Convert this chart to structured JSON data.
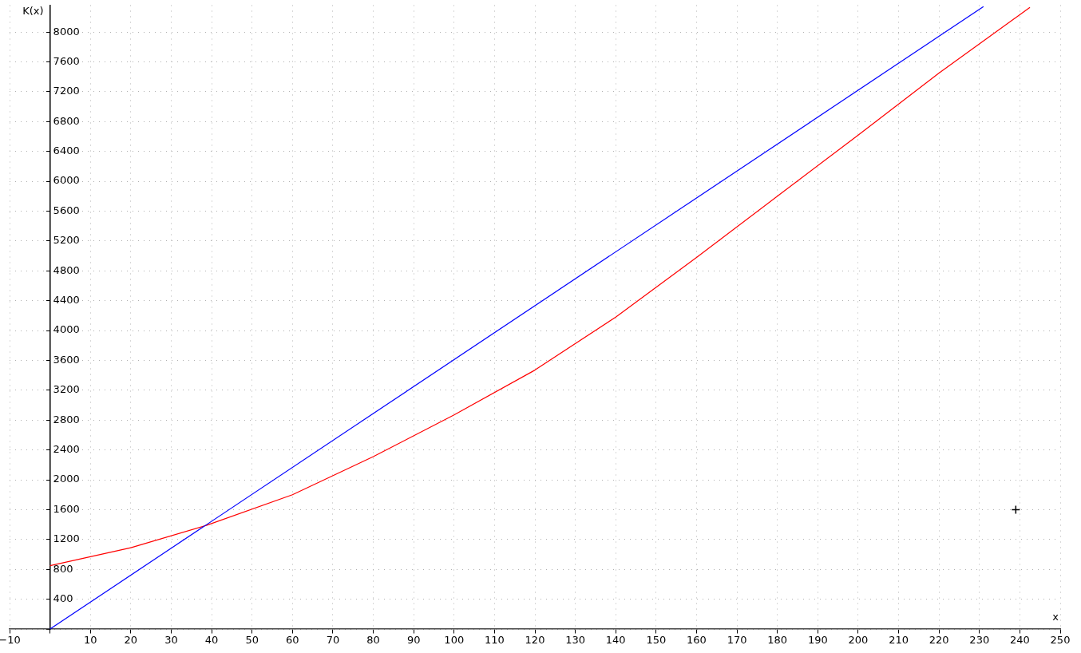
{
  "chart_data": {
    "type": "line",
    "xlabel": "x",
    "ylabel": "K(x)",
    "xlim": [
      -10,
      250
    ],
    "ylim": [
      0,
      8360
    ],
    "xticks": [
      -10,
      {
        "value": 0,
        "label": null
      },
      10,
      20,
      30,
      40,
      50,
      60,
      70,
      80,
      90,
      100,
      110,
      120,
      130,
      140,
      150,
      160,
      170,
      180,
      190,
      200,
      210,
      220,
      230,
      240,
      250
    ],
    "yticks": [
      {
        "value": 0,
        "label": null
      },
      400,
      800,
      1200,
      1600,
      2000,
      2400,
      2800,
      3200,
      3600,
      4000,
      4400,
      4800,
      5200,
      5600,
      6000,
      6400,
      6800,
      7200,
      7600,
      8000
    ],
    "grid": true,
    "legend": false,
    "line_style": "solid",
    "series": [
      {
        "color": "#0000ff",
        "x": [
          0,
          231
        ],
        "values": [
          0,
          8340
        ]
      },
      {
        "color": "#ff0000",
        "x": [
          0,
          20,
          38.7,
          60,
          80,
          100,
          120,
          140,
          160,
          180,
          200,
          220,
          242.5
        ],
        "values": [
          850,
          1090,
          1390,
          1800,
          2310,
          2870,
          3470,
          4180,
          4980,
          5800,
          6620,
          7450,
          8330
        ]
      },
      {
        "type": "scatter",
        "marker": "cross",
        "color": "#000000",
        "x": [
          239
        ],
        "values": [
          1600
        ]
      }
    ]
  }
}
